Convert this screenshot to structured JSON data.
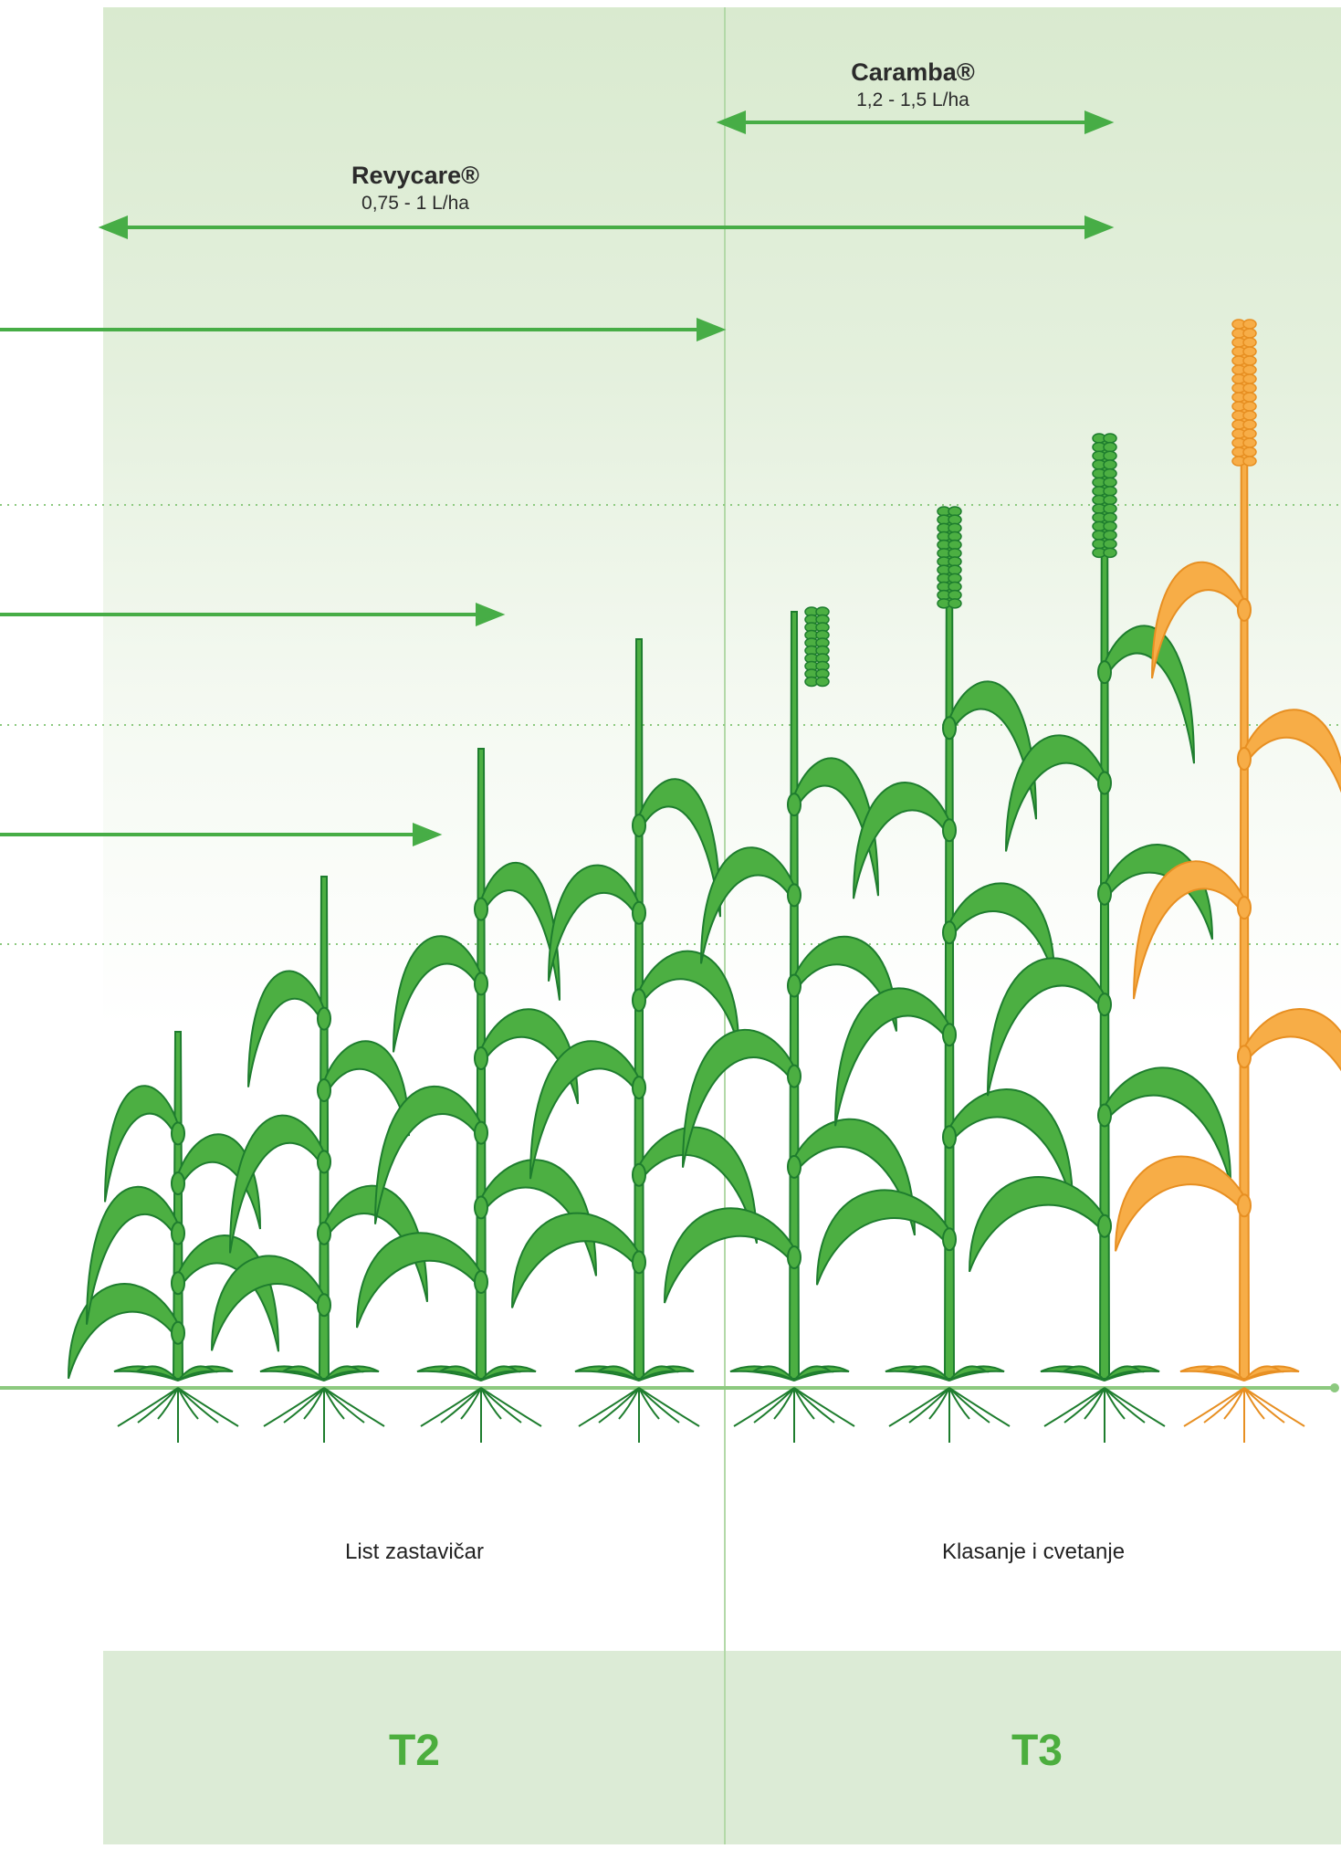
{
  "colors": {
    "panel_light": "#dcebd6",
    "arrow_green": "#47ad46",
    "plant_green": "#4caf42",
    "plant_outline": "#1e7d2e",
    "ripe_orange": "#f7ad47",
    "ripe_outline": "#e78f22",
    "divider": "#8cc97f",
    "label_green": "#4cae3e"
  },
  "products": [
    {
      "name": "Caramba®",
      "dose": "1,2 - 1,5 L/ha"
    },
    {
      "name": "Revycare®",
      "dose": "0,75 - 1 L/ha"
    }
  ],
  "stages": {
    "left": "List zastavičar",
    "right": "Klasanje i cvetanje"
  },
  "periods": {
    "left": "T2",
    "right": "T3"
  },
  "icons": [
    "wheat-plant-icon",
    "ripe-wheat-plant-icon",
    "roots-icon",
    "arrow-icon"
  ]
}
